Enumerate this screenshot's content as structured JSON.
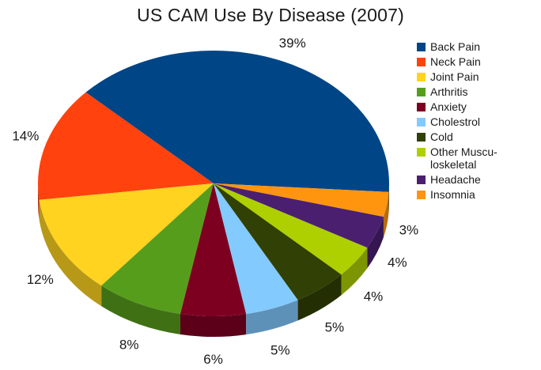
{
  "chart_data": {
    "type": "pie",
    "title": "US CAM Use By Disease (2007)",
    "legend_position": "right",
    "slices": [
      {
        "name": "Back Pain",
        "value": 39,
        "label": "39%",
        "color": "#004586"
      },
      {
        "name": "Neck Pain",
        "value": 14,
        "label": "14%",
        "color": "#ff420e"
      },
      {
        "name": "Joint Pain",
        "value": 12,
        "label": "12%",
        "color": "#ffd320"
      },
      {
        "name": "Arthritis",
        "value": 8,
        "label": "8%",
        "color": "#579d1c"
      },
      {
        "name": "Anxiety",
        "value": 6,
        "label": "6%",
        "color": "#7e0021"
      },
      {
        "name": "Cholestrol",
        "value": 5,
        "label": "5%",
        "color": "#83caff"
      },
      {
        "name": "Cold",
        "value": 5,
        "label": "5%",
        "color": "#314004"
      },
      {
        "name": "Other Muscu-\nloskeletal",
        "value": 4,
        "label": "4%",
        "color": "#aecf00"
      },
      {
        "name": "Headache",
        "value": 4,
        "label": "4%",
        "color": "#4b1f6f"
      },
      {
        "name": "Insomnia",
        "value": 3,
        "label": "3%",
        "color": "#ff950e"
      }
    ]
  }
}
